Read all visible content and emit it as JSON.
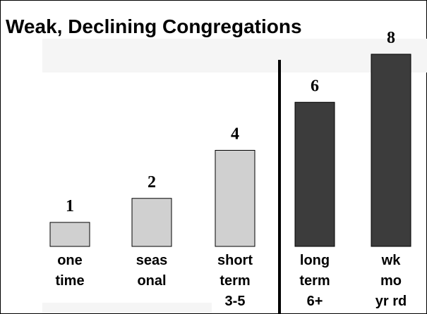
{
  "chart_data": {
    "type": "bar",
    "title": "Weak, Declining Congregations",
    "categories": [
      [
        "one",
        "time"
      ],
      [
        "seas",
        "onal"
      ],
      [
        "short",
        "term",
        "3-5"
      ],
      [
        "long",
        "term",
        "6+"
      ],
      [
        "wk",
        "mo",
        "yr rd"
      ]
    ],
    "values": [
      1,
      2,
      4,
      6,
      8
    ],
    "colors": [
      "#d0d0d0",
      "#d0d0d0",
      "#d0d0d0",
      "#3c3c3c",
      "#3c3c3c"
    ]
  }
}
